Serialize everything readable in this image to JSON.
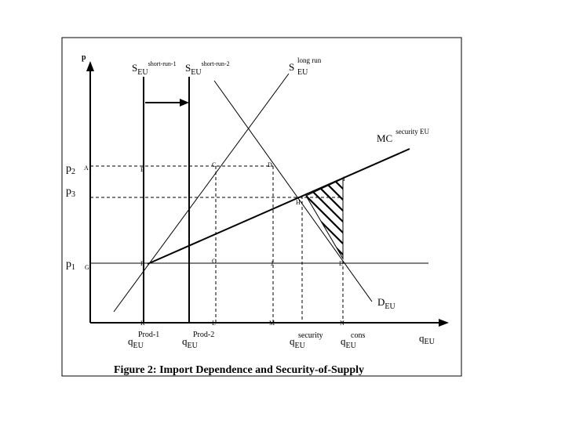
{
  "figure": {
    "caption": "Figure 2: Import Dependence and Security-of-Supply"
  },
  "axes": {
    "y_label": "p",
    "x_label": "q",
    "x_label_sub": "EU"
  },
  "prices": {
    "p2": {
      "base": "p",
      "sub": "2"
    },
    "p3": {
      "base": "p",
      "sub": "3"
    },
    "p1": {
      "base": "p",
      "sub": "1"
    }
  },
  "curves": {
    "s_short1": {
      "base": "S",
      "sub": "EU",
      "sup": "short-run-1"
    },
    "s_short2": {
      "base": "S",
      "sub": "EU",
      "sup": "short-run-2"
    },
    "s_long": {
      "base": "S",
      "sub": "EU",
      "sup": "long run"
    },
    "mc": {
      "base": "MC",
      "sup": "security EU"
    },
    "demand": {
      "base": "D",
      "sub": "EU"
    }
  },
  "quantities": {
    "prod1": {
      "top": "Prod-1",
      "base": "q",
      "sub": "EU"
    },
    "prod2": {
      "top": "Prod-2",
      "base": "q",
      "sub": "EU"
    },
    "security": {
      "top": "security",
      "base": "q",
      "sub": "EU"
    },
    "cons": {
      "top": "cons",
      "base": "q",
      "sub": "EU"
    }
  },
  "points": {
    "A": "A",
    "B": "B",
    "C": "C",
    "D": "D",
    "I": "I",
    "H": "H",
    "G": "G",
    "F": "F",
    "O": "O",
    "J": "J",
    "E": "E",
    "K": "K",
    "L": "L",
    "M": "M",
    "N": "N"
  }
}
